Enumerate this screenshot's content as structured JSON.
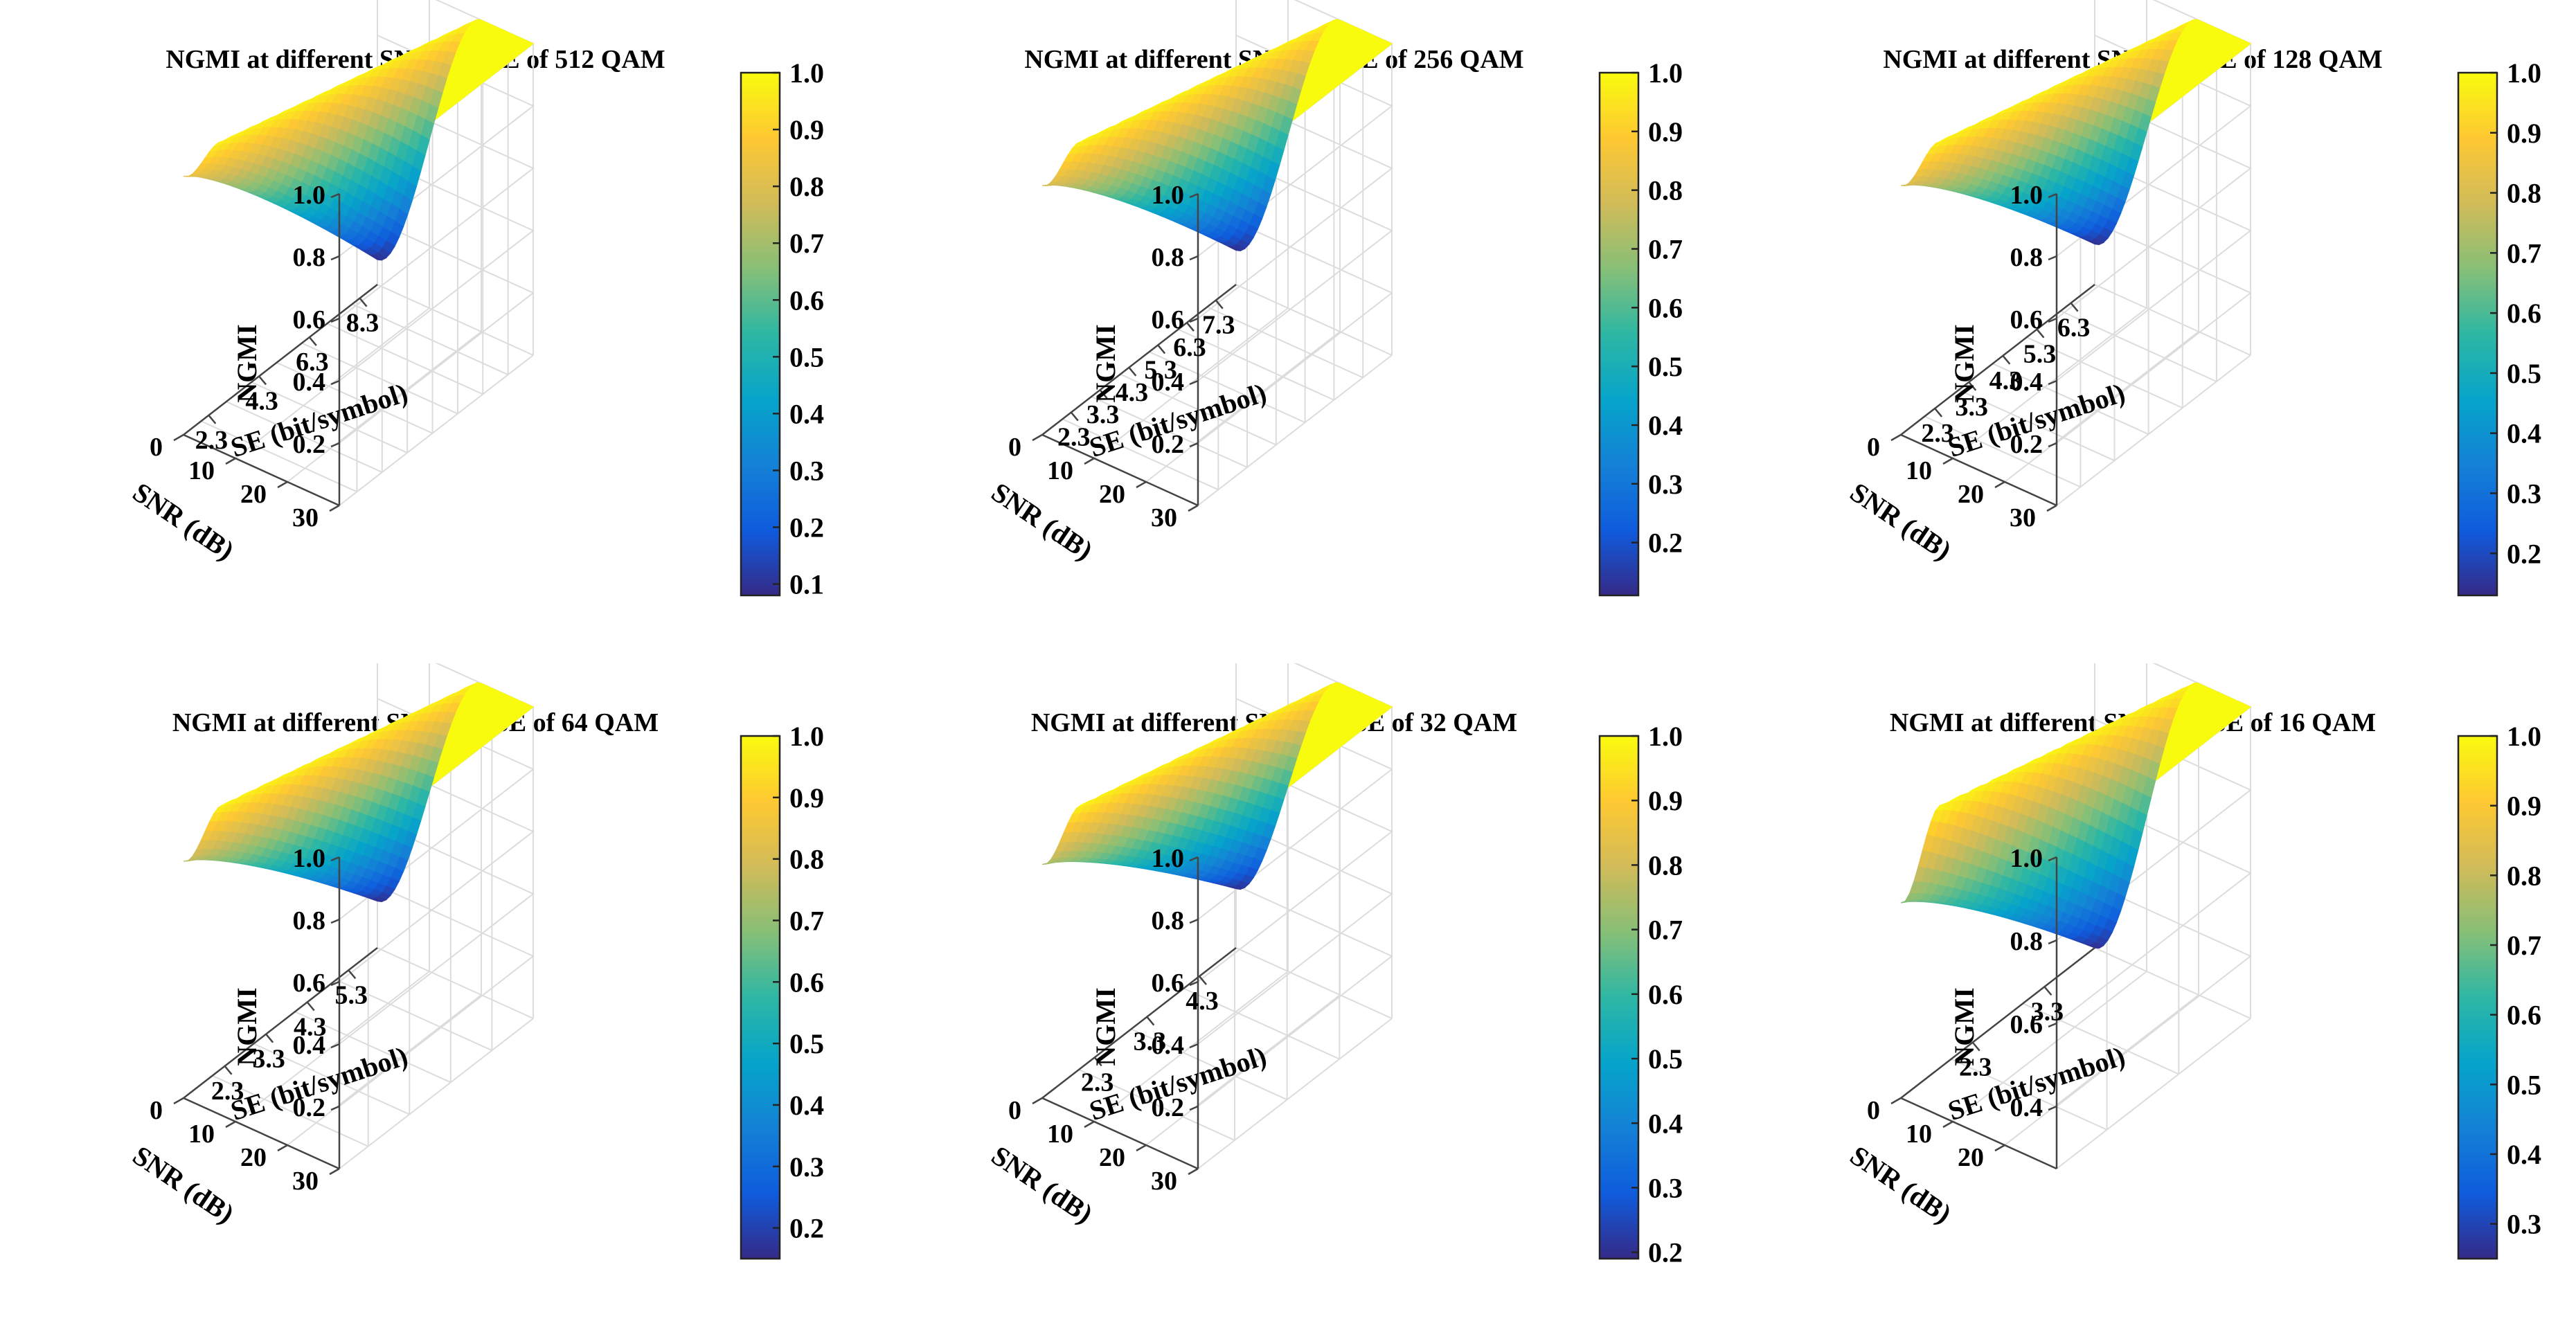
{
  "chart_data": [
    {
      "type": "surface3d",
      "title": "NGMI at different SNR and SE of 512 QAM",
      "xlabel": "SE (bit/symbol)",
      "ylabel": "SNR (dB)",
      "zlabel": "NGMI",
      "se_ticks": [
        "8.3",
        "6.3",
        "4.3",
        "2.3"
      ],
      "se_range": [
        1.3,
        9.0
      ],
      "snr_ticks": [
        "30",
        "20",
        "10",
        "0"
      ],
      "snr_range": [
        0,
        30
      ],
      "z_ticks": [
        "0.2",
        "0.4",
        "0.6",
        "0.8",
        "1.0"
      ],
      "z_range": [
        0.0,
        1.0
      ],
      "colorbar_ticks": [
        "1.0",
        "0.9",
        "0.8",
        "0.7",
        "0.6",
        "0.5",
        "0.4",
        "0.3",
        "0.2",
        "0.1"
      ],
      "colorbar_range": [
        0.08,
        1.0
      ],
      "surface": {
        "min_ngmi_at_low_snr": 0.08,
        "max_ngmi": 1.0,
        "ngmi_at_low_snr_low_se": 0.83
      }
    },
    {
      "type": "surface3d",
      "title": "NGMI at different SNR and SE of 256 QAM",
      "xlabel": "SE (bit/symbol)",
      "ylabel": "SNR (dB)",
      "zlabel": "NGMI",
      "se_ticks": [
        "7.3",
        "6.3",
        "5.3",
        "4.3",
        "3.3",
        "2.3"
      ],
      "se_range": [
        1.3,
        8.0
      ],
      "snr_ticks": [
        "30",
        "20",
        "10",
        "0"
      ],
      "snr_range": [
        0,
        30
      ],
      "z_ticks": [
        "0.2",
        "0.4",
        "0.6",
        "0.8",
        "1.0"
      ],
      "z_range": [
        0.0,
        1.0
      ],
      "colorbar_ticks": [
        "1.0",
        "0.9",
        "0.8",
        "0.7",
        "0.6",
        "0.5",
        "0.4",
        "0.3",
        "0.2"
      ],
      "colorbar_range": [
        0.11,
        1.0
      ],
      "surface": {
        "min_ngmi_at_low_snr": 0.11,
        "max_ngmi": 1.0,
        "ngmi_at_low_snr_low_se": 0.8
      }
    },
    {
      "type": "surface3d",
      "title": "NGMI at different SNR and SE of 128 QAM",
      "xlabel": "SE (bit/symbol)",
      "ylabel": "SNR (dB)",
      "zlabel": "NGMI",
      "se_ticks": [
        "6.3",
        "5.3",
        "4.3",
        "3.3",
        "2.3"
      ],
      "se_range": [
        1.3,
        7.0
      ],
      "snr_ticks": [
        "30",
        "20",
        "10",
        "0"
      ],
      "snr_range": [
        0,
        30
      ],
      "z_ticks": [
        "0.2",
        "0.4",
        "0.6",
        "0.8",
        "1.0"
      ],
      "z_range": [
        0.0,
        1.0
      ],
      "colorbar_ticks": [
        "1.0",
        "0.9",
        "0.8",
        "0.7",
        "0.6",
        "0.5",
        "0.4",
        "0.3",
        "0.2"
      ],
      "colorbar_range": [
        0.13,
        1.0
      ],
      "surface": {
        "min_ngmi_at_low_snr": 0.13,
        "max_ngmi": 1.0,
        "ngmi_at_low_snr_low_se": 0.8
      }
    },
    {
      "type": "surface3d",
      "title": "NGMI at different SNR and SE of 64 QAM",
      "xlabel": "SE (bit/symbol)",
      "ylabel": "SNR (dB)",
      "zlabel": "NGMI",
      "se_ticks": [
        "5.3",
        "4.3",
        "3.3",
        "2.3"
      ],
      "se_range": [
        1.3,
        6.0
      ],
      "snr_ticks": [
        "30",
        "20",
        "10",
        "0"
      ],
      "snr_range": [
        0,
        30
      ],
      "z_ticks": [
        "0.2",
        "0.4",
        "0.6",
        "0.8",
        "1.0"
      ],
      "z_range": [
        0.0,
        1.0
      ],
      "colorbar_ticks": [
        "1.0",
        "0.9",
        "0.8",
        "0.7",
        "0.6",
        "0.5",
        "0.4",
        "0.3",
        "0.2"
      ],
      "colorbar_range": [
        0.15,
        1.0
      ],
      "surface": {
        "min_ngmi_at_low_snr": 0.15,
        "max_ngmi": 1.0,
        "ngmi_at_low_snr_low_se": 0.76
      }
    },
    {
      "type": "surface3d",
      "title": "NGMI at different SNR and SE of 32 QAM",
      "xlabel": "SE (bit/symbol)",
      "ylabel": "SNR (dB)",
      "zlabel": "NGMI",
      "se_ticks": [
        "4.3",
        "3.3",
        "2.3"
      ],
      "se_range": [
        1.3,
        5.0
      ],
      "snr_ticks": [
        "30",
        "20",
        "10",
        "0"
      ],
      "snr_range": [
        0,
        30
      ],
      "z_ticks": [
        "0.2",
        "0.4",
        "0.6",
        "0.8",
        "1.0"
      ],
      "z_range": [
        0.0,
        1.0
      ],
      "colorbar_ticks": [
        "1.0",
        "0.9",
        "0.8",
        "0.7",
        "0.6",
        "0.5",
        "0.4",
        "0.3",
        "0.2"
      ],
      "colorbar_range": [
        0.19,
        1.0
      ],
      "surface": {
        "min_ngmi_at_low_snr": 0.19,
        "max_ngmi": 1.0,
        "ngmi_at_low_snr_low_se": 0.75
      }
    },
    {
      "type": "surface3d",
      "title": "NGMI at different SNR and SE of 16 QAM",
      "xlabel": "SE (bit/symbol)",
      "ylabel": "SNR (dB)",
      "zlabel": "NGMI",
      "se_ticks": [
        "3.3",
        "2.3"
      ],
      "se_range": [
        1.3,
        4.0
      ],
      "snr_ticks": [
        "20",
        "10",
        "0"
      ],
      "snr_range": [
        0,
        30
      ],
      "z_ticks": [
        "0.4",
        "0.6",
        "0.8",
        "1.0"
      ],
      "z_range": [
        0.25,
        1.0
      ],
      "colorbar_ticks": [
        "1.0",
        "0.9",
        "0.8",
        "0.7",
        "0.6",
        "0.5",
        "0.4",
        "0.3"
      ],
      "colorbar_range": [
        0.25,
        1.0
      ],
      "surface": {
        "min_ngmi_at_low_snr": 0.25,
        "max_ngmi": 1.0,
        "ngmi_at_low_snr_low_se": 0.72
      }
    }
  ],
  "colormap": {
    "name": "parula",
    "stops": [
      "#352a87",
      "#0f5cdd",
      "#1481d6",
      "#06a4ca",
      "#2eb7a4",
      "#87bf77",
      "#d1bb59",
      "#fec832",
      "#f9fb0e"
    ]
  }
}
